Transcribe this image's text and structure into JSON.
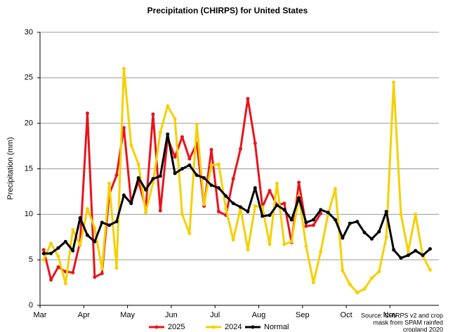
{
  "chart_data": {
    "type": "line",
    "title": "Precipitation (CHIRPS) for United States",
    "y_label": "Precipitation (mm)",
    "annotation": [
      "Source: CHIRPS v2 and crop",
      "mask from SPAM rainfed",
      "cropland 2020"
    ],
    "x": [
      1,
      2,
      3,
      4,
      5,
      6,
      7,
      8,
      9,
      10,
      11,
      12,
      13,
      14,
      15,
      16,
      17,
      18,
      19,
      20,
      21,
      22,
      23,
      24,
      25,
      26,
      27,
      28,
      29,
      30,
      31,
      32,
      33,
      34,
      35,
      36,
      37,
      38,
      39,
      40,
      41,
      42,
      43,
      44,
      45,
      46,
      47,
      48,
      49,
      50,
      51,
      52,
      53,
      54
    ],
    "xlim": [
      0.5,
      55.2
    ],
    "xticks": [
      {
        "value": 0.5,
        "label": "Mar"
      },
      {
        "value": 6.5,
        "label": "Apr"
      },
      {
        "value": 12.5,
        "label": "May"
      },
      {
        "value": 18.5,
        "label": "Jun"
      },
      {
        "value": 24.5,
        "label": "Jul"
      },
      {
        "value": 30.5,
        "label": "Aug"
      },
      {
        "value": 36.5,
        "label": "Sep"
      },
      {
        "value": 42.5,
        "label": "Oct"
      },
      {
        "value": 48.5,
        "label": "Nov"
      }
    ],
    "ylim": [
      0,
      30
    ],
    "yticks": [
      0,
      5,
      10,
      15,
      20,
      25,
      30
    ],
    "grid": true,
    "legend": "bottom",
    "series": [
      {
        "name": "2025",
        "color": "#e8141b",
        "values": [
          6.1,
          2.8,
          4.2,
          3.7,
          3.6,
          7.0,
          21.1,
          3.1,
          3.5,
          12.2,
          14.3,
          19.5,
          11.3,
          13.6,
          10.7,
          21.0,
          10.4,
          18.4,
          16.3,
          18.5,
          16.1,
          17.8,
          10.9,
          17.1,
          10.3,
          9.9,
          13.9,
          17.2,
          22.7,
          17.8,
          10.8,
          12.6,
          11.0,
          11.2,
          6.9,
          13.5,
          8.7,
          8.8,
          10.1,
          null,
          null,
          null,
          null,
          null,
          null,
          null,
          null,
          null,
          null,
          null,
          null,
          null,
          null,
          null
        ]
      },
      {
        "name": "2024",
        "color": "#f5d000",
        "values": [
          5.0,
          6.8,
          5.4,
          2.4,
          8.3,
          6.6,
          10.6,
          8.5,
          4.0,
          13.4,
          4.1,
          26.0,
          17.6,
          15.5,
          10.2,
          13.5,
          19.0,
          21.9,
          20.5,
          10.0,
          7.9,
          19.9,
          11.1,
          15.4,
          15.5,
          10.6,
          7.2,
          10.7,
          6.1,
          10.9,
          10.8,
          6.7,
          13.4,
          6.7,
          7.0,
          12.0,
          6.5,
          2.5,
          5.9,
          10.0,
          12.8,
          3.8,
          2.3,
          1.4,
          1.8,
          3.0,
          3.7,
          7.5,
          24.5,
          10.0,
          5.9,
          10.0,
          5.4,
          3.9
        ]
      },
      {
        "name": "Normal",
        "color": "#000000",
        "values": [
          5.7,
          5.7,
          6.3,
          7.0,
          6.0,
          9.6,
          7.7,
          7.0,
          9.1,
          8.8,
          9.2,
          12.1,
          11.2,
          14.0,
          12.7,
          13.9,
          14.2,
          18.8,
          14.5,
          15.0,
          15.4,
          14.3,
          14.0,
          13.2,
          12.9,
          12.0,
          11.2,
          10.8,
          10.3,
          12.9,
          9.8,
          9.9,
          11.0,
          10.5,
          9.4,
          11.8,
          9.1,
          9.4,
          10.5,
          10.2,
          9.4,
          7.4,
          9.0,
          9.2,
          8.0,
          7.3,
          8.1,
          10.3,
          6.1,
          5.2,
          5.5,
          6.0,
          5.5,
          6.2
        ]
      }
    ]
  }
}
